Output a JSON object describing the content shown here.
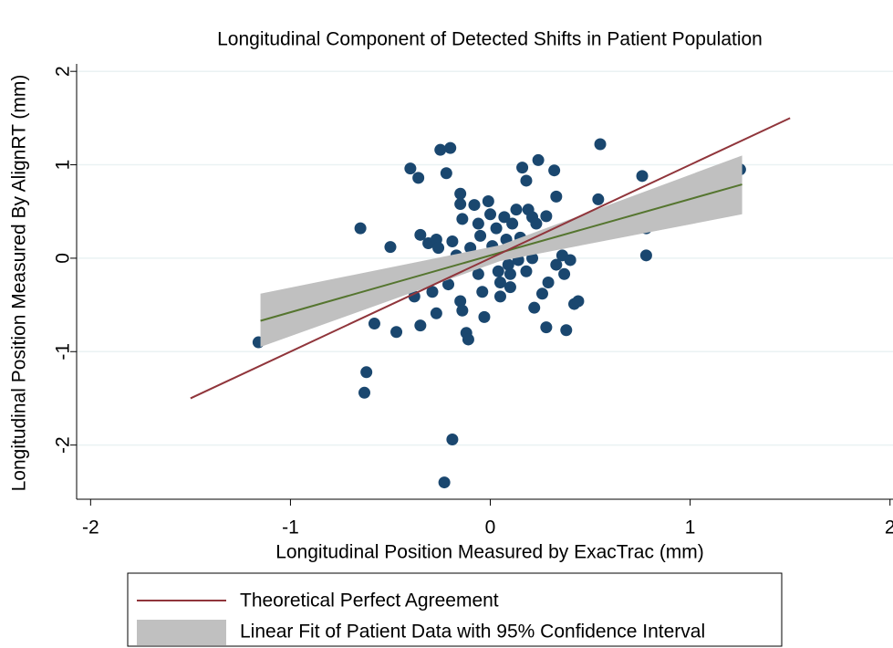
{
  "chart_data": {
    "type": "scatter",
    "title": "Longitudinal Component of Detected Shifts in Patient Population",
    "x_label": "Longitudinal Position Measured by ExacTrac (mm)",
    "y_label": "Longitudinal Position Measured By AlignRT (mm)",
    "xlim": [
      -2.07,
      2.015
    ],
    "ylim": [
      -2.58,
      2.08
    ],
    "xticks": [
      -2,
      -1,
      0,
      1,
      2
    ],
    "yticks": [
      -2,
      -1,
      0,
      1,
      2
    ],
    "grid": true,
    "scatter": {
      "color": "#1a476f",
      "x": [
        -1.16,
        -0.65,
        -0.62,
        -0.63,
        -0.58,
        -0.5,
        -0.47,
        -0.4,
        -0.36,
        -0.35,
        -0.35,
        -0.38,
        -0.32,
        -0.31,
        -0.27,
        -0.26,
        -0.25,
        -0.2,
        -0.22,
        -0.23,
        -0.19,
        -0.29,
        -0.27,
        -0.24,
        -0.21,
        -0.19,
        -0.17,
        -0.15,
        -0.15,
        -0.14,
        -0.15,
        -0.14,
        -0.12,
        -0.11,
        -0.1,
        -0.08,
        -0.06,
        -0.06,
        -0.05,
        -0.04,
        -0.03,
        -0.01,
        0,
        0.01,
        0.03,
        0.04,
        0.05,
        0.05,
        0.07,
        0.08,
        0.09,
        0.1,
        0.1,
        0.11,
        0.12,
        0.13,
        0.14,
        0.15,
        0.16,
        0.18,
        0.18,
        0.19,
        0.21,
        0.21,
        0.23,
        0.22,
        0.24,
        0.25,
        0.26,
        0.28,
        0.28,
        0.29,
        0.31,
        0.32,
        0.33,
        0.33,
        0.35,
        0.36,
        0.37,
        0.38,
        0.4,
        0.42,
        0.44,
        0.54,
        0.55,
        0.76,
        0.78,
        0.78,
        1.25
      ],
      "y": [
        -0.9,
        0.32,
        -1.22,
        -1.44,
        -0.7,
        0.12,
        -0.79,
        0.96,
        0.86,
        0.25,
        -0.72,
        -0.41,
        -0.17,
        0.16,
        0.2,
        0.11,
        1.16,
        1.18,
        0.91,
        -2.4,
        -1.94,
        -0.36,
        -0.59,
        -0.07,
        -0.28,
        0.18,
        0.03,
        0.69,
        0.58,
        0.42,
        -0.46,
        -0.56,
        -0.8,
        -0.87,
        0.11,
        0.57,
        0.37,
        -0.17,
        0.24,
        -0.36,
        -0.63,
        0.61,
        0.47,
        0.13,
        0.32,
        -0.14,
        -0.41,
        -0.26,
        0.44,
        0.2,
        -0.07,
        -0.17,
        -0.31,
        0.37,
        0.11,
        0.52,
        -0.02,
        0.22,
        0.97,
        0.83,
        -0.14,
        0.52,
        0.44,
        0,
        0.37,
        -0.53,
        1.05,
        0.13,
        -0.38,
        0.45,
        -0.74,
        -0.26,
        0.15,
        0.94,
        0.66,
        -0.07,
        0.25,
        0.03,
        -0.17,
        -0.77,
        -0.02,
        -0.49,
        -0.46,
        0.63,
        1.22,
        0.88,
        0.03,
        0.32,
        0.95
      ]
    },
    "reference_line": {
      "name": "Theoretical Perfect Agreement",
      "color": "#90353b",
      "x": [
        -1.5,
        1.5
      ],
      "y": [
        -1.5,
        1.5
      ]
    },
    "fit": {
      "name": "Linear Fit of Patient Data with 95% Confidence Interval",
      "line_color": "#55752f",
      "band_color": "#c0c0c0",
      "x": [
        -1.15,
        0.05,
        1.26
      ],
      "y": [
        -0.67,
        0.06,
        0.79
      ],
      "lower": [
        -0.95,
        -0.03,
        0.47
      ],
      "upper": [
        -0.38,
        0.14,
        1.1
      ]
    }
  }
}
